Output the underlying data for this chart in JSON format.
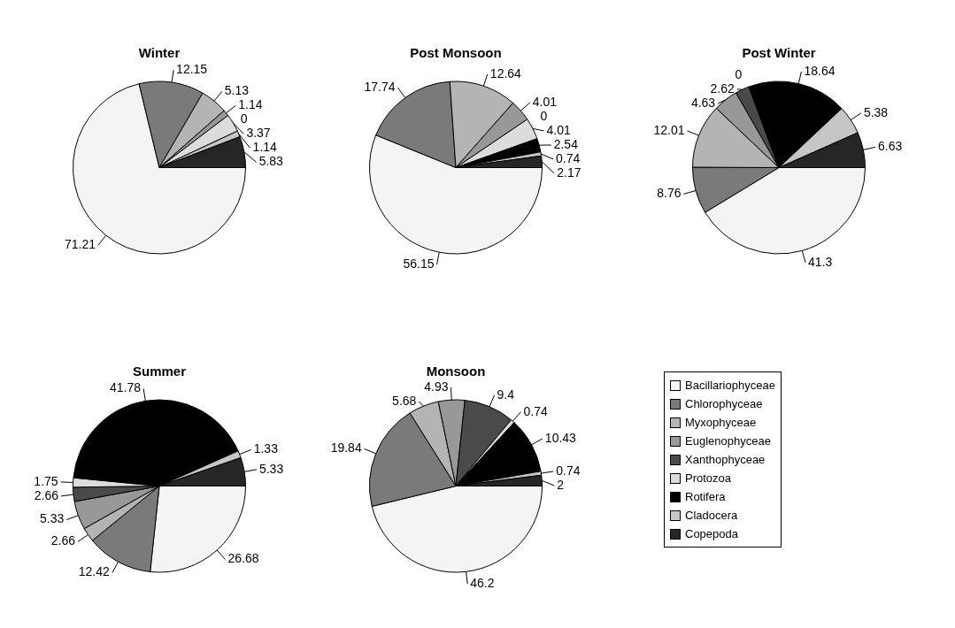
{
  "chart_data": [
    {
      "type": "pie",
      "title": "Winter",
      "categories": [
        null,
        null,
        null,
        null,
        null,
        null,
        null,
        null,
        null
      ],
      "values": [
        71.21,
        12.15,
        5.13,
        1.14,
        0,
        3.37,
        null,
        1.14,
        5.83
      ],
      "value_labels": [
        "71.21",
        "12.15",
        "5.13",
        "1.14",
        "0",
        "3.37",
        null,
        "1.14",
        "5.83"
      ],
      "colors": [
        "#f4f4f4",
        "#7a7a7a",
        "#b4b4b4",
        "#989898",
        "#4a4a4a",
        "#dcdcdc",
        "#000000",
        "#c6c6c6",
        "#262626"
      ]
    },
    {
      "type": "pie",
      "title": "Post Monsoon",
      "categories": [
        null,
        null,
        null,
        null,
        null,
        null,
        null,
        null,
        null
      ],
      "values": [
        56.15,
        17.74,
        12.64,
        4.01,
        0,
        4.01,
        2.54,
        0.74,
        2.17
      ],
      "value_labels": [
        "56.15",
        "17.74",
        "12.64",
        "4.01",
        "0",
        "4.01",
        "2.54",
        "0.74",
        "2.17"
      ],
      "colors": [
        "#f4f4f4",
        "#7a7a7a",
        "#b4b4b4",
        "#989898",
        "#4a4a4a",
        "#dcdcdc",
        "#000000",
        "#c6c6c6",
        "#262626"
      ]
    },
    {
      "type": "pie",
      "title": "Post Winter",
      "categories": [
        null,
        null,
        null,
        null,
        null,
        null,
        null,
        null,
        null
      ],
      "values": [
        41.3,
        8.76,
        12.01,
        4.63,
        2.62,
        0,
        18.64,
        5.38,
        6.63
      ],
      "value_labels": [
        "41.3",
        "8.76",
        "12.01",
        "4.63",
        "2.62",
        "0",
        "18.64",
        "5.38",
        "6.63"
      ],
      "colors": [
        "#f4f4f4",
        "#7a7a7a",
        "#b4b4b4",
        "#989898",
        "#4a4a4a",
        "#dcdcdc",
        "#000000",
        "#c6c6c6",
        "#262626"
      ]
    },
    {
      "type": "pie",
      "title": "Summer",
      "categories": [
        null,
        null,
        null,
        null,
        null,
        null,
        null,
        null,
        null
      ],
      "values": [
        26.68,
        12.42,
        2.66,
        5.33,
        2.66,
        1.75,
        41.78,
        1.33,
        5.33
      ],
      "value_labels": [
        "26.68",
        "12.42",
        "2.66",
        "5.33",
        "2.66",
        "1.75",
        "41.78",
        "1.33",
        "5.33"
      ],
      "colors": [
        "#f4f4f4",
        "#7a7a7a",
        "#b4b4b4",
        "#989898",
        "#4a4a4a",
        "#dcdcdc",
        "#000000",
        "#c6c6c6",
        "#262626"
      ]
    },
    {
      "type": "pie",
      "title": "Monsoon",
      "legend": "right",
      "categories": [
        "Bacillariophyceae",
        "Chlorophyceae",
        "Myxophyceae",
        "Euglenophyceae",
        "Xanthophyceae",
        "Protozoa",
        "Rotifera",
        "Cladocera",
        "Copepoda"
      ],
      "values": [
        46.2,
        19.84,
        5.68,
        4.93,
        9.4,
        0.74,
        10.43,
        0.74,
        2
      ],
      "value_labels": [
        "46.2",
        "19.84",
        "5.68",
        "4.93",
        "9.4",
        "0.74",
        "10.43",
        "0.74",
        "2"
      ],
      "colors": [
        "#f4f4f4",
        "#7a7a7a",
        "#b4b4b4",
        "#989898",
        "#4a4a4a",
        "#dcdcdc",
        "#000000",
        "#c6c6c6",
        "#262626"
      ]
    }
  ]
}
